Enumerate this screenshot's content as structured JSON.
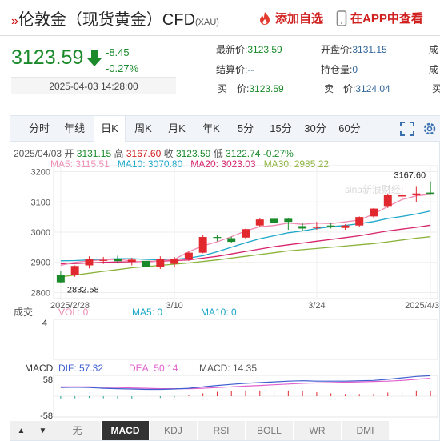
{
  "header": {
    "title_prefix": "»",
    "title": "伦敦金（现货黄金）CFD",
    "title_code": "(XAU)",
    "fav_label": "添加自选",
    "app_label": "在APP中查看"
  },
  "quote": {
    "price": "3123.59",
    "change": "-8.45",
    "change_pct": "-0.27%",
    "time": "2025-04-03 14:28:00",
    "latest_label": "最新价:",
    "latest": "3123.59",
    "open_label": "开盘价:",
    "open": "3131.15",
    "settle_label": "结算价:",
    "settle": "--",
    "hold_label": "持仓量:",
    "hold": "0",
    "col3_a": "成",
    "bid_label": "买　价:",
    "bid": "3123.59",
    "ask_label": "卖　价:",
    "ask": "3124.04",
    "col3_b": "买"
  },
  "tabs": [
    "分时",
    "年线",
    "日K",
    "周K",
    "月K",
    "年K",
    "5分",
    "15分",
    "30分",
    "60分"
  ],
  "active_tab": "日K",
  "legend": {
    "date": "2025/04/03",
    "open_label": "开",
    "open": "3131.15",
    "high_label": "高",
    "high": "3167.60",
    "close_label": "收",
    "close": "3123.59",
    "low_label": "低",
    "low": "3122.74",
    "pct": "-0.27%",
    "ma5": "MA5: 3115.51",
    "ma10": "MA10: 3070.80",
    "ma20": "MA20: 3023.03",
    "ma30": "MA30: 2985.22"
  },
  "volume_legend": {
    "label": "成交",
    "vol": "VOL: 0",
    "ma5": "MA5: 0",
    "ma10": "MA10: 0",
    "axis": "4"
  },
  "macd_legend": {
    "label": "MACD",
    "dif": "DIF: 57.32",
    "dea": "DEA: 50.14",
    "macd": "MACD: 14.35",
    "top": "58",
    "bottom": "-58"
  },
  "bottom_tabs": [
    "无",
    "MACD",
    "KDJ",
    "RSI",
    "BOLL",
    "WR",
    "DMI"
  ],
  "active_bottom": "MACD",
  "watermark": "sina新浪财经",
  "colors": {
    "up": "#e0282e",
    "down": "#1a8a2a",
    "ma5": "#f08cb4",
    "ma10": "#1ca7c8",
    "ma20": "#d6226a",
    "ma30": "#8ab33a",
    "dif": "#3f5fd0",
    "dea": "#e060d0"
  },
  "chart_data": {
    "type": "candlestick",
    "y_ticks": [
      3200,
      3100,
      3000,
      2900,
      2800
    ],
    "ylim": [
      2780,
      3220
    ],
    "x_tick_labels": [
      "2025/2/28",
      "3/10",
      "3/24",
      "2025/4/3"
    ],
    "max_label": "3167.60",
    "min_label": "2832.58",
    "candles": [
      {
        "o": 2858,
        "h": 2870,
        "l": 2832,
        "c": 2834
      },
      {
        "o": 2857,
        "h": 2890,
        "l": 2852,
        "c": 2888
      },
      {
        "o": 2890,
        "h": 2920,
        "l": 2880,
        "c": 2912
      },
      {
        "o": 2905,
        "h": 2918,
        "l": 2895,
        "c": 2908
      },
      {
        "o": 2912,
        "h": 2922,
        "l": 2900,
        "c": 2904
      },
      {
        "o": 2902,
        "h": 2915,
        "l": 2890,
        "c": 2909
      },
      {
        "o": 2905,
        "h": 2910,
        "l": 2880,
        "c": 2885
      },
      {
        "o": 2885,
        "h": 2920,
        "l": 2878,
        "c": 2912
      },
      {
        "o": 2895,
        "h": 2918,
        "l": 2885,
        "c": 2910
      },
      {
        "o": 2910,
        "h": 2935,
        "l": 2905,
        "c": 2932
      },
      {
        "o": 2932,
        "h": 2992,
        "l": 2930,
        "c": 2984
      },
      {
        "o": 2984,
        "h": 2990,
        "l": 2970,
        "c": 2982
      },
      {
        "o": 2980,
        "h": 2985,
        "l": 2965,
        "c": 2968
      },
      {
        "o": 2982,
        "h": 3012,
        "l": 2976,
        "c": 3010
      },
      {
        "o": 3022,
        "h": 3046,
        "l": 3018,
        "c": 3042
      },
      {
        "o": 3044,
        "h": 3058,
        "l": 3025,
        "c": 3030
      },
      {
        "o": 3044,
        "h": 3046,
        "l": 3008,
        "c": 3034
      },
      {
        "o": 3020,
        "h": 3030,
        "l": 3005,
        "c": 3012
      },
      {
        "o": 3014,
        "h": 3034,
        "l": 3008,
        "c": 3018
      },
      {
        "o": 3022,
        "h": 3032,
        "l": 3012,
        "c": 3020
      },
      {
        "o": 3014,
        "h": 3026,
        "l": 3008,
        "c": 3022
      },
      {
        "o": 3022,
        "h": 3052,
        "l": 3018,
        "c": 3050
      },
      {
        "o": 3052,
        "h": 3080,
        "l": 3048,
        "c": 3078
      },
      {
        "o": 3084,
        "h": 3128,
        "l": 3080,
        "c": 3122
      },
      {
        "o": 3118,
        "h": 3150,
        "l": 3112,
        "c": 3122
      },
      {
        "o": 3122,
        "h": 3150,
        "l": 3100,
        "c": 3128
      },
      {
        "o": 3131,
        "h": 3168,
        "l": 3123,
        "c": 3124
      }
    ],
    "ma5": [
      2890,
      2900,
      2905,
      2908,
      2910,
      2905,
      2900,
      2905,
      2910,
      2935,
      2955,
      2968,
      2985,
      3004,
      3018,
      3022,
      3030,
      3026,
      3030,
      3028,
      3034,
      3040,
      3060,
      3085,
      3108,
      3120,
      3125
    ],
    "ma10": [
      2905,
      2906,
      2908,
      2910,
      2912,
      2912,
      2910,
      2908,
      2910,
      2914,
      2922,
      2935,
      2950,
      2965,
      2978,
      2988,
      2998,
      3004,
      3012,
      3018,
      3022,
      3028,
      3035,
      3045,
      3052,
      3060,
      3070
    ],
    "ma20": [
      2895,
      2896,
      2898,
      2900,
      2901,
      2902,
      2903,
      2904,
      2906,
      2908,
      2914,
      2920,
      2928,
      2936,
      2944,
      2952,
      2958,
      2964,
      2970,
      2976,
      2982,
      2988,
      2996,
      3004,
      3010,
      3016,
      3023
    ],
    "ma30": [
      2852,
      2858,
      2864,
      2870,
      2876,
      2882,
      2886,
      2890,
      2894,
      2898,
      2903,
      2908,
      2914,
      2920,
      2926,
      2932,
      2938,
      2942,
      2946,
      2950,
      2954,
      2958,
      2962,
      2968,
      2974,
      2980,
      2985
    ],
    "macd_dif": [
      24,
      25,
      24,
      22,
      21,
      20,
      19,
      19,
      20,
      22,
      26,
      30,
      33,
      36,
      38,
      40,
      42,
      43,
      42,
      42,
      42,
      43,
      44,
      47,
      51,
      55,
      57
    ],
    "macd_dea": [
      26,
      26,
      26,
      25,
      24,
      23,
      22,
      21,
      21,
      21,
      22,
      24,
      26,
      28,
      30,
      32,
      34,
      36,
      37,
      38,
      39,
      40,
      41,
      42,
      44,
      47,
      50
    ],
    "macd_hist": [
      -8,
      -6,
      -5,
      -6,
      -7,
      -7,
      -6,
      -5,
      -3,
      2,
      8,
      12,
      14,
      16,
      16,
      16,
      16,
      14,
      11,
      8,
      6,
      6,
      6,
      10,
      14,
      16,
      14
    ]
  }
}
